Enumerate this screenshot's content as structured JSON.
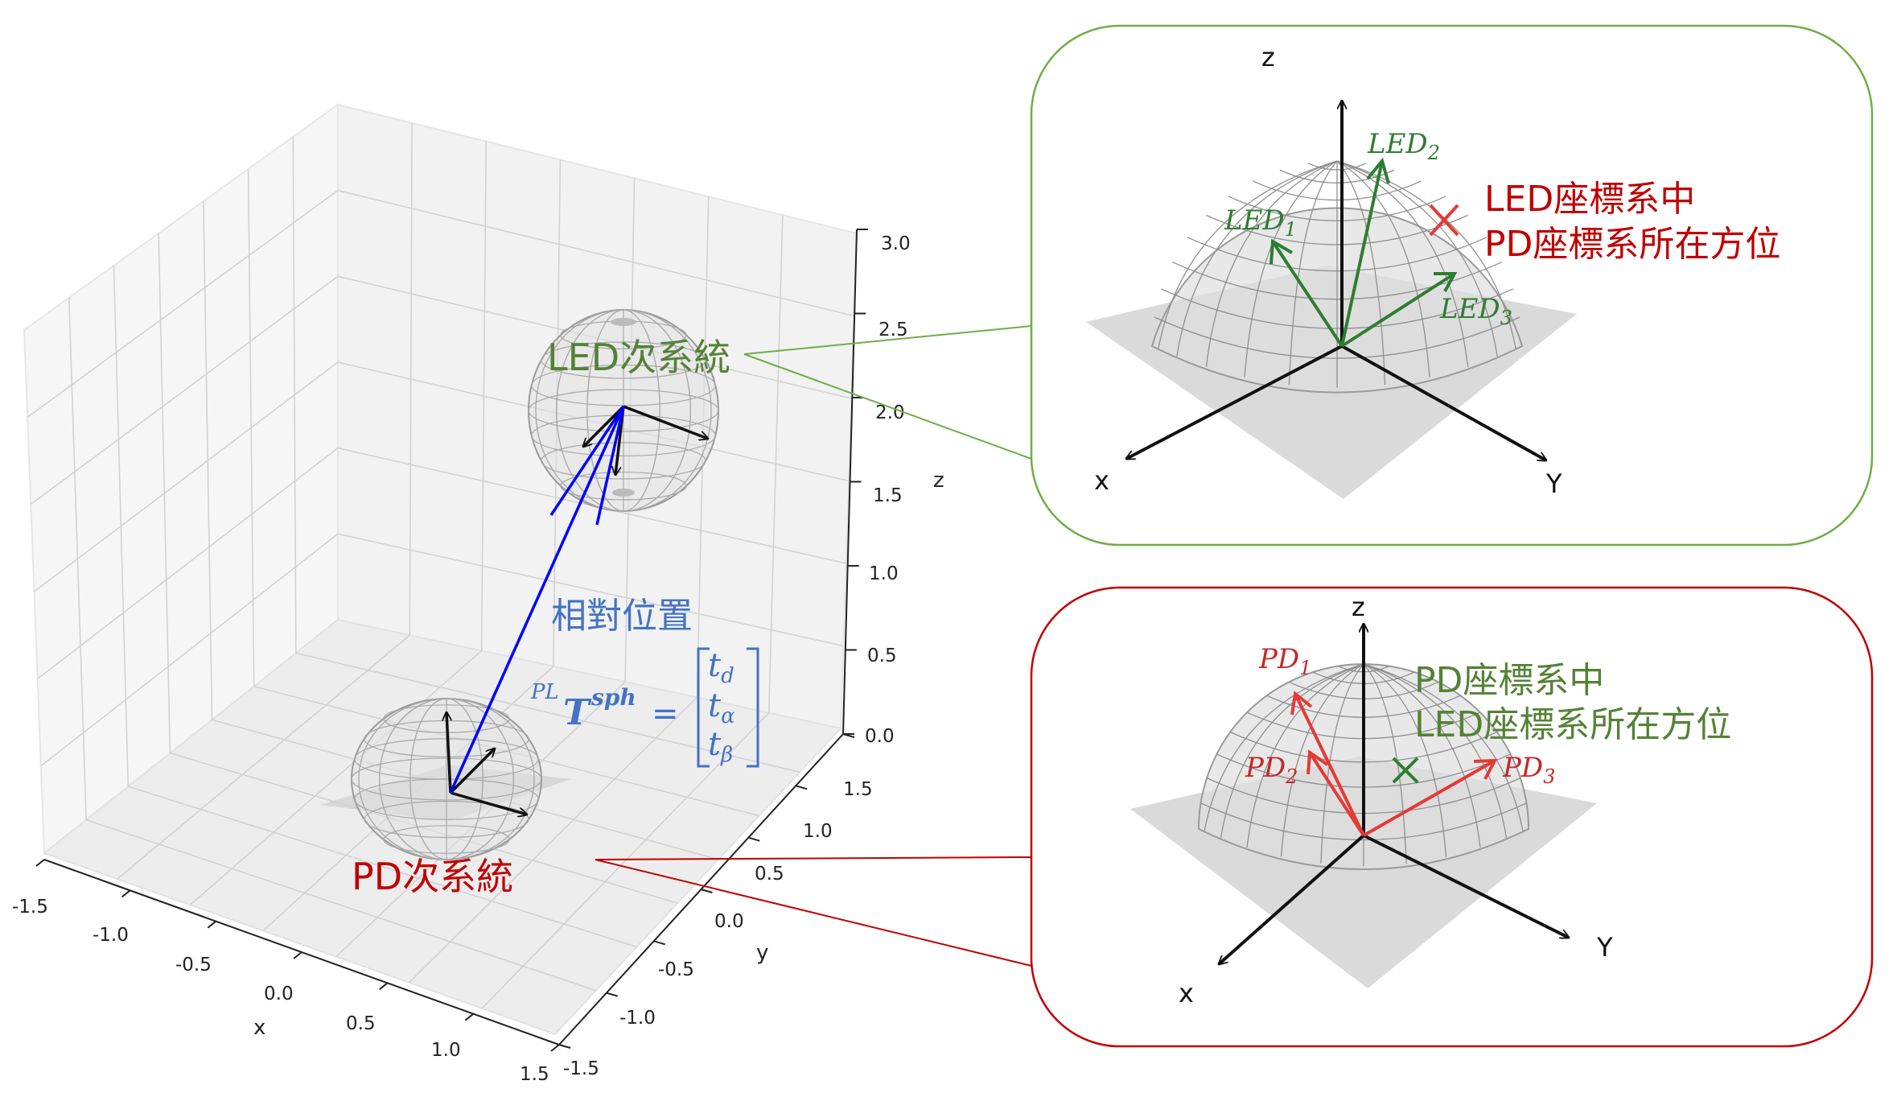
{
  "main_plot": {
    "x_ticks": [
      "-1.5",
      "-1.0",
      "-0.5",
      "0.0",
      "0.5",
      "1.0",
      "1.5"
    ],
    "y_ticks": [
      "-1.5",
      "-1.0",
      "-0.5",
      "0.0",
      "0.5",
      "1.0",
      "1.5"
    ],
    "z_ticks": [
      "0.0",
      "0.5",
      "1.0",
      "1.5",
      "2.0",
      "2.5",
      "3.0"
    ],
    "x_label": "x",
    "y_label": "y",
    "z_label": "z",
    "led_label": "LED次系統",
    "pd_label": "PD次系統",
    "relative_label": "相對位置",
    "formula": {
      "sup_left": "PL",
      "symbol": "T",
      "sup_right": "sph",
      "equals": "=",
      "entries": [
        {
          "base": "t",
          "sub": "d"
        },
        {
          "base": "t",
          "sub": "α"
        },
        {
          "base": "t",
          "sub": "β"
        }
      ]
    }
  },
  "led_panel": {
    "axis_z": "z",
    "axis_x": "x",
    "axis_y": "Y",
    "vectors": [
      {
        "base": "LED",
        "sub": "1"
      },
      {
        "base": "LED",
        "sub": "2"
      },
      {
        "base": "LED",
        "sub": "3"
      }
    ],
    "note_line1": "LED座標系中",
    "note_line2": "PD座標系所在方位",
    "border_color": "#70ad47"
  },
  "pd_panel": {
    "axis_z": "z",
    "axis_x": "x",
    "axis_y": "Y",
    "vectors": [
      {
        "base": "PD",
        "sub": "1"
      },
      {
        "base": "PD",
        "sub": "2"
      },
      {
        "base": "PD",
        "sub": "3"
      }
    ],
    "note_line1": "PD座標系中",
    "note_line2": "LED座標系所在方位",
    "border_color": "#c00000"
  },
  "colors": {
    "relative_vector": "#0000ff",
    "led_vectors": "#2e7d32",
    "pd_vectors": "#e53935",
    "marker_red": "#e53935",
    "marker_green": "#2e7d32"
  }
}
